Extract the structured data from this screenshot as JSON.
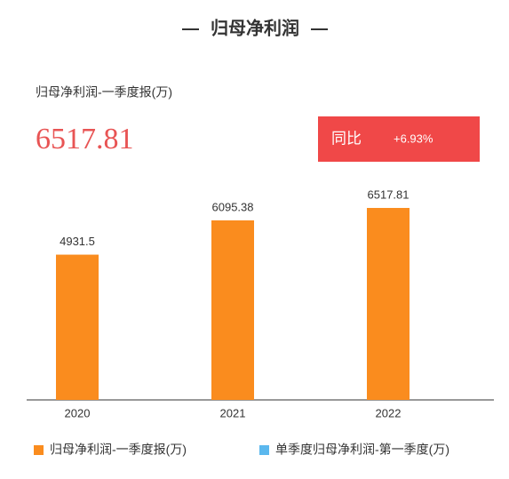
{
  "chart_data": {
    "type": "bar",
    "title": "归母净利润",
    "subtitle": "归母净利润-一季度报(万)",
    "headline_value": 6517.81,
    "badge_label": "同比",
    "badge_change": "+6.93%",
    "categories": [
      "2020",
      "2021",
      "2022"
    ],
    "series": [
      {
        "name": "归母净利润-一季度报(万)",
        "color": "#fa8c1e",
        "values": [
          4931.5,
          6095.38,
          6517.81
        ]
      },
      {
        "name": "单季度归母净利润-第一季度(万)",
        "color": "#5bb8ee",
        "values": [
          null,
          null,
          null
        ]
      }
    ],
    "ylim": [
      0,
      7000
    ],
    "grid": false
  }
}
